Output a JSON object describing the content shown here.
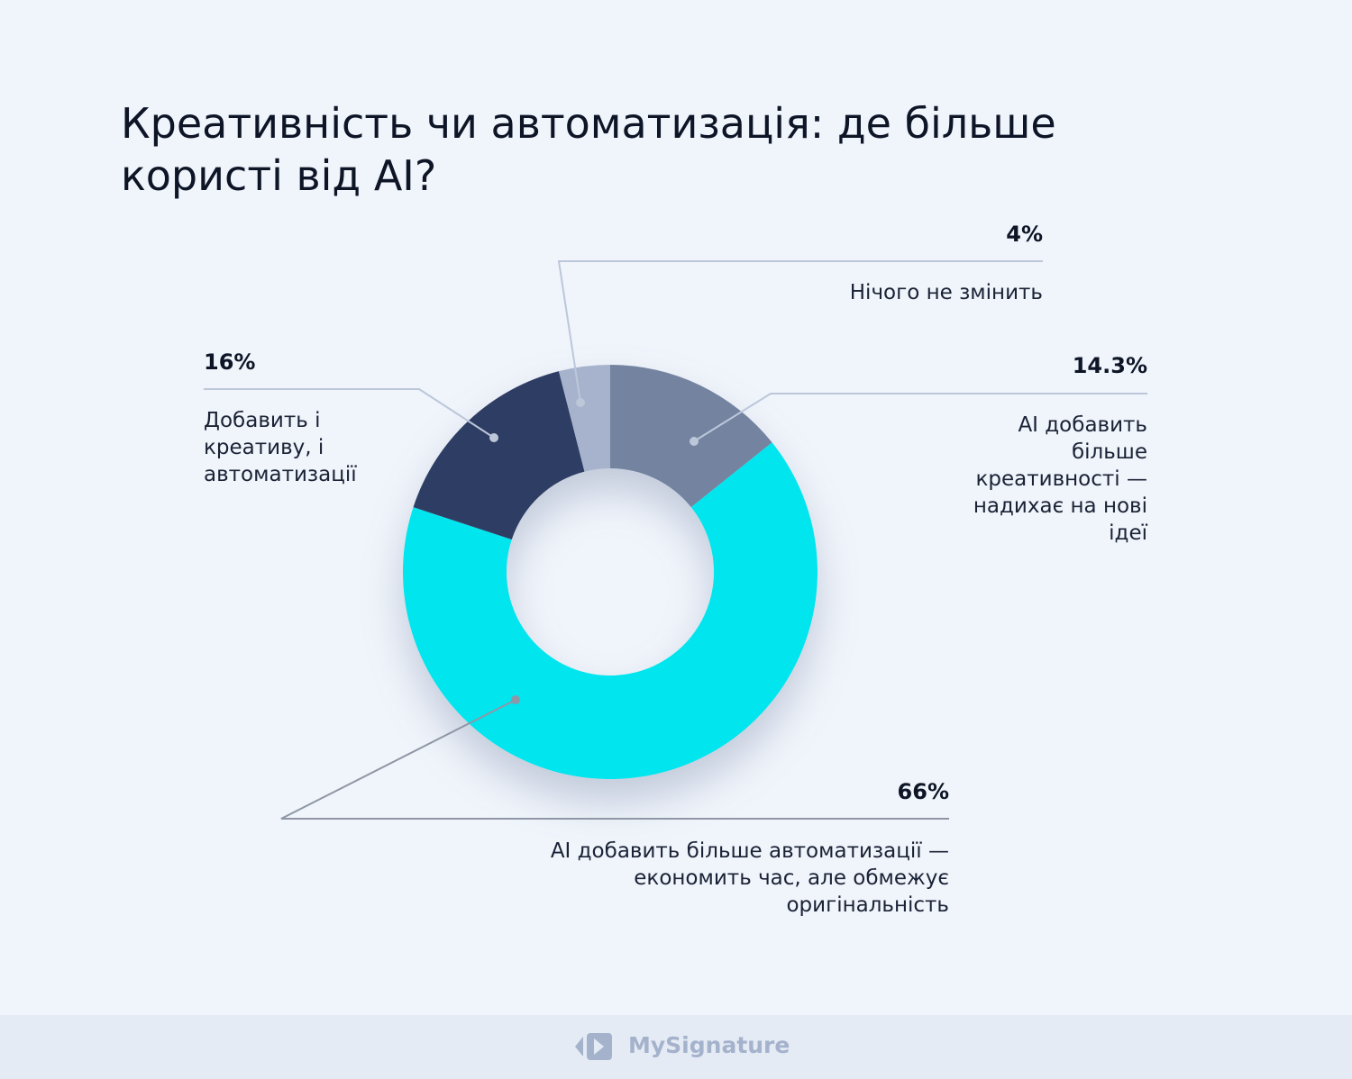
{
  "chart_data": {
    "type": "pie",
    "variant": "donut",
    "title": "Креативність чи автоматизація: де більше користі від AI?",
    "slices": [
      {
        "label": "AI добавить більше креативності — надихає на нові ідеї",
        "value": 14.3,
        "value_label": "14.3%",
        "color": "#7383a0"
      },
      {
        "label": "AI добавить більше автоматизації — економить час, але обмежує оригінальність",
        "value": 66,
        "value_label": "66%",
        "color": "#00e5ee"
      },
      {
        "label": "Добавить і креативу, і автоматизації",
        "value": 16,
        "value_label": "16%",
        "color": "#2d3e63"
      },
      {
        "label": "Нічого не змінить",
        "value": 4,
        "value_label": "4%",
        "color": "#a7b3cd"
      }
    ],
    "start": "top",
    "direction": "clockwise"
  },
  "footer": {
    "brand": "MySignature"
  }
}
